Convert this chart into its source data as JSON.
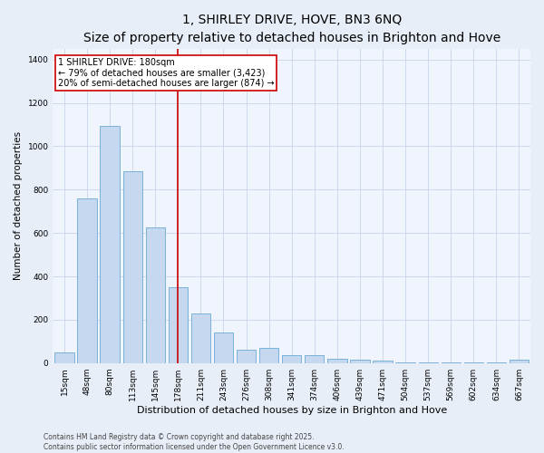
{
  "title": "1, SHIRLEY DRIVE, HOVE, BN3 6NQ",
  "subtitle": "Size of property relative to detached houses in Brighton and Hove",
  "xlabel": "Distribution of detached houses by size in Brighton and Hove",
  "ylabel": "Number of detached properties",
  "categories": [
    "15sqm",
    "48sqm",
    "80sqm",
    "113sqm",
    "145sqm",
    "178sqm",
    "211sqm",
    "243sqm",
    "276sqm",
    "308sqm",
    "341sqm",
    "374sqm",
    "406sqm",
    "439sqm",
    "471sqm",
    "504sqm",
    "537sqm",
    "569sqm",
    "602sqm",
    "634sqm",
    "667sqm"
  ],
  "values": [
    50,
    760,
    1095,
    885,
    625,
    350,
    230,
    140,
    60,
    70,
    35,
    35,
    20,
    15,
    10,
    5,
    5,
    5,
    5,
    5,
    15
  ],
  "bar_color": "#c5d8ef",
  "bar_edge_color": "#6aaad4",
  "vline_x": 5,
  "vline_color": "#cc0000",
  "annotation_text": "1 SHIRLEY DRIVE: 180sqm\n← 79% of detached houses are smaller (3,423)\n20% of semi-detached houses are larger (874) →",
  "annotation_box_color": "#ffffff",
  "annotation_box_edge_color": "#cc0000",
  "ylim": [
    0,
    1450
  ],
  "yticks": [
    0,
    200,
    400,
    600,
    800,
    1000,
    1200,
    1400
  ],
  "bg_color": "#e8eef8",
  "plot_bg_color": "#f0f4fc",
  "footer": "Contains HM Land Registry data © Crown copyright and database right 2025.\nContains public sector information licensed under the Open Government Licence v3.0.",
  "title_fontsize": 10,
  "subtitle_fontsize": 8.5,
  "xlabel_fontsize": 8,
  "ylabel_fontsize": 7.5,
  "tick_fontsize": 6.5,
  "ann_fontsize": 7,
  "footer_fontsize": 5.5
}
